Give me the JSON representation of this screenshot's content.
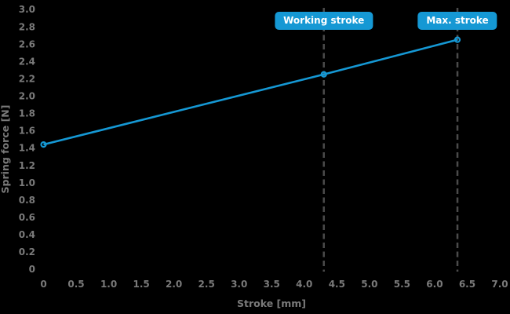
{
  "chart_data": {
    "type": "line",
    "title": "",
    "xlabel": "Stroke [mm]",
    "ylabel": "Spring force [N]",
    "xlim": [
      0,
      7.0
    ],
    "ylim": [
      0,
      3.0
    ],
    "grid": false,
    "legend": "none",
    "axis_lines": false,
    "x_ticks": {
      "values": [
        0,
        0.5,
        1.0,
        1.5,
        2.0,
        2.5,
        3.0,
        3.5,
        4.0,
        4.5,
        5.0,
        5.5,
        6.0,
        6.5,
        7.0
      ],
      "labels": [
        "0",
        "0.5",
        "1.0",
        "1.5",
        "2.0",
        "2.5",
        "3.0",
        "3.5",
        "4.0",
        "4.5",
        "5.0",
        "5.5",
        "6.0",
        "6.5",
        "7.0"
      ]
    },
    "y_ticks": {
      "values": [
        0,
        0.2,
        0.4,
        0.6,
        0.8,
        1.0,
        1.2,
        1.4,
        1.6,
        1.8,
        2.0,
        2.2,
        2.4,
        2.6,
        2.8,
        3.0
      ],
      "labels": [
        "0",
        "0.2",
        "0.4",
        "0.6",
        "0.8",
        "1.0",
        "1.2",
        "1.4",
        "1.6",
        "1.8",
        "2.0",
        "2.2",
        "2.4",
        "2.6",
        "2.8",
        "3.0"
      ]
    },
    "series": [
      {
        "name": "Spring force",
        "marker": "open-circle",
        "x": [
          0,
          4.3,
          6.35
        ],
        "y": [
          1.44,
          2.25,
          2.65
        ]
      }
    ],
    "annotations": [
      {
        "label": "Working stroke",
        "x": 4.3,
        "line_style": "dashed"
      },
      {
        "label": "Max. stroke",
        "x": 6.35,
        "line_style": "dashed"
      }
    ],
    "colors": {
      "accent": "#1598d4",
      "dashed_line": "#4b4b4b",
      "tick_text": "#7a7a7a",
      "axis_title_text": "#7a7a7a",
      "badge_background": "#1598d4",
      "badge_text": "#ffffff",
      "background": "#000000"
    }
  }
}
